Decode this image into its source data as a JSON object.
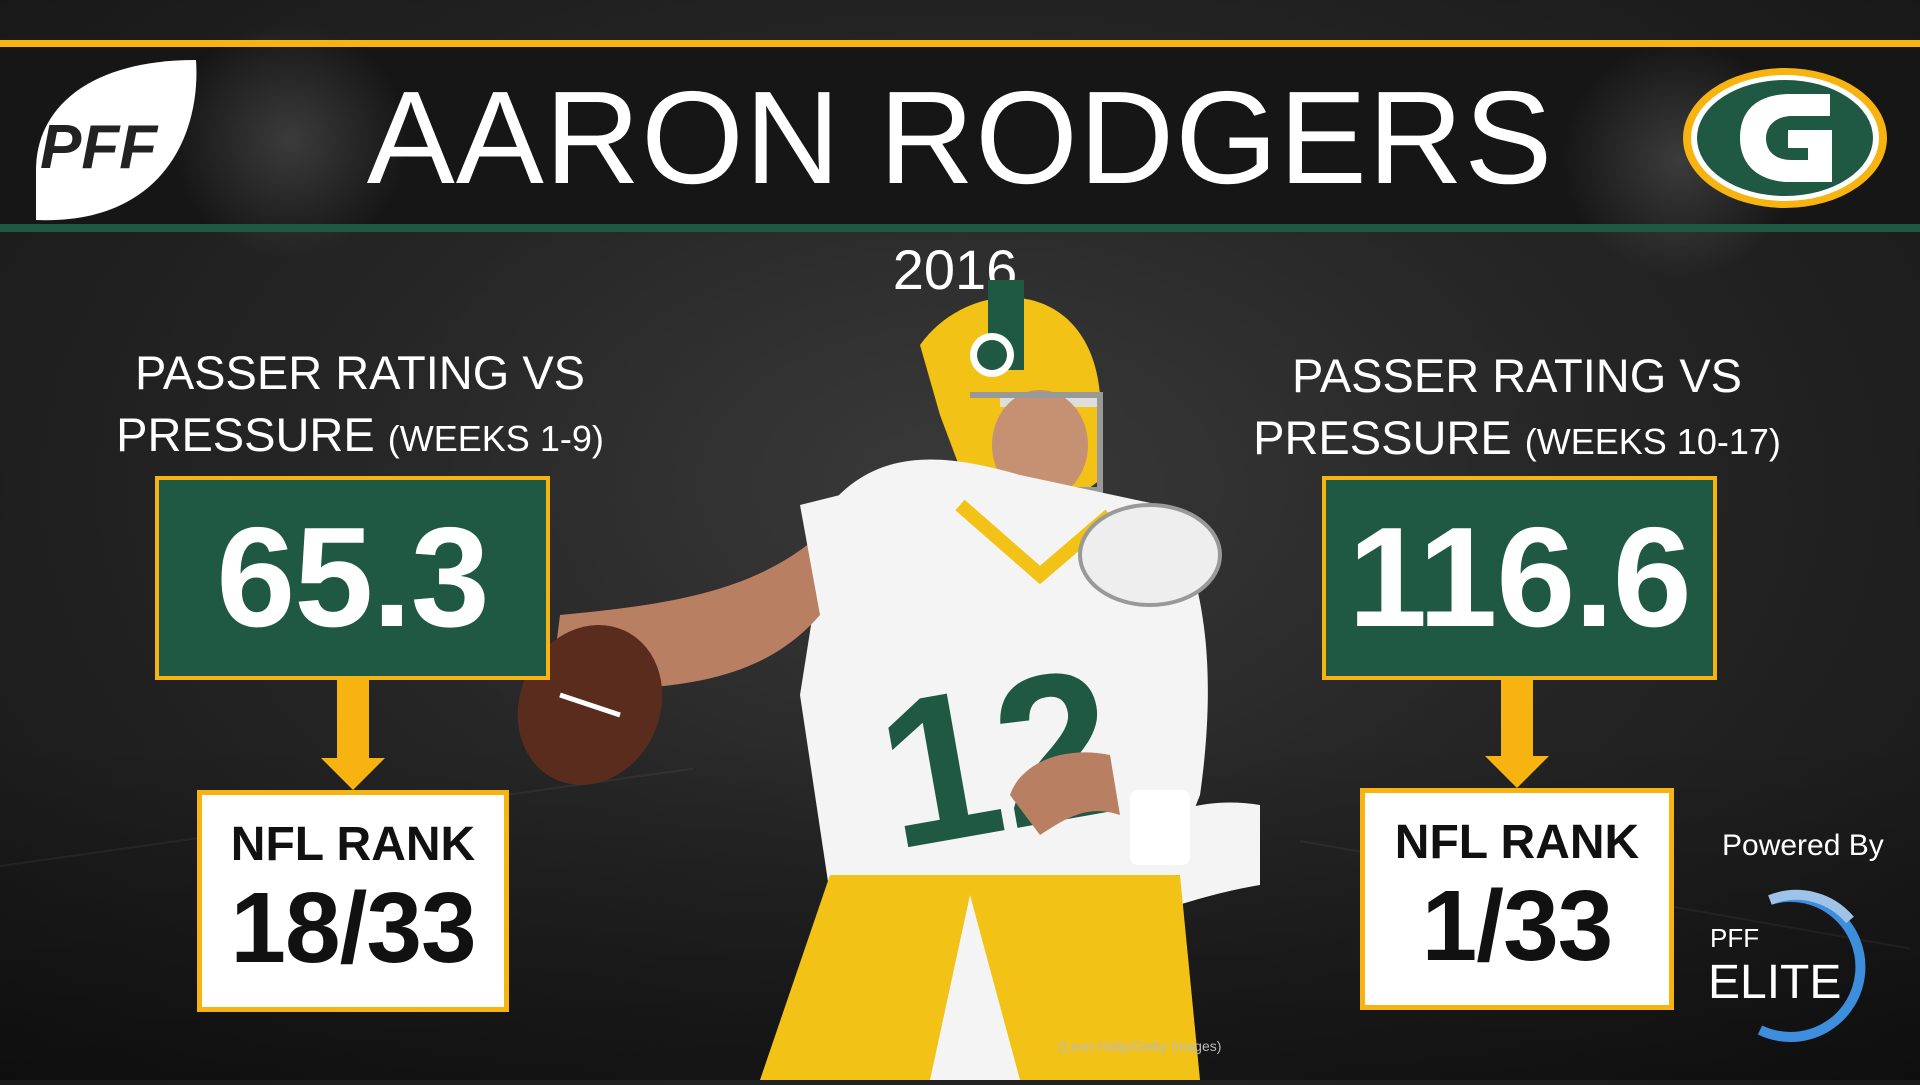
{
  "header": {
    "title": "AARON RODGERS",
    "year": "2016",
    "brand_logo_text": "PFF",
    "team_logo": "packers-g-logo"
  },
  "left": {
    "label_line1": "PASSER RATING VS",
    "label_line2": "PRESSURE",
    "label_period": "(WEEKS 1-9)",
    "value": "65.3",
    "rank_label": "NFL RANK",
    "rank_value": "18/33"
  },
  "right": {
    "label_line1": "PASSER RATING VS",
    "label_line2": "PRESSURE",
    "label_period": "(WEEKS 10-17)",
    "value": "116.6",
    "rank_label": "NFL RANK",
    "rank_value": "1/33"
  },
  "footer": {
    "powered_by": "Powered By",
    "elite_small": "PFF",
    "elite_big": "ELITE",
    "photo_credit": "(Leon Halip/Getty Images)"
  },
  "colors": {
    "gold": "#F7B30F",
    "green": "#1F5843",
    "background": "#222222",
    "elite_blue": "#3E8EDE"
  }
}
